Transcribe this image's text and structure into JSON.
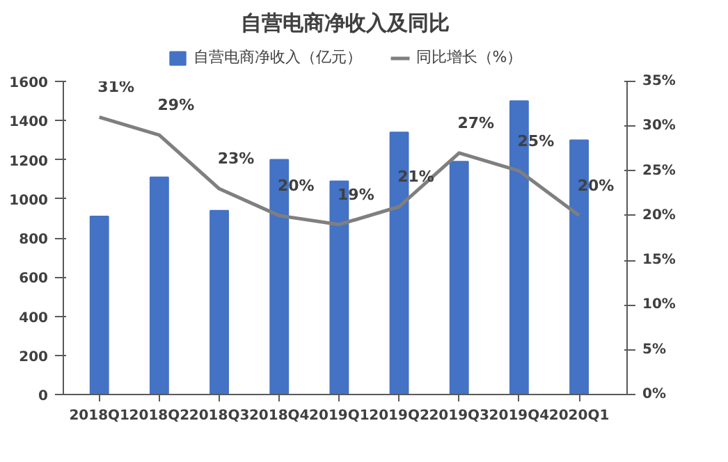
{
  "chart_data": {
    "type": "bar",
    "title": "自营电商净收入及同比",
    "categories": [
      "2018Q1",
      "2018Q2",
      "2018Q3",
      "2018Q4",
      "2019Q1",
      "2019Q2",
      "2019Q3",
      "2019Q4",
      "2020Q1"
    ],
    "series": [
      {
        "name": "自营电商净收入（亿元）",
        "color": "#4472c4",
        "values": [
          910,
          1110,
          940,
          1200,
          1090,
          1340,
          1190,
          1500,
          1300
        ]
      },
      {
        "name": "同比增长（%）",
        "type": "line",
        "axis": "y2",
        "color": "#7f7f7f",
        "values": [
          31,
          29,
          23,
          20,
          19,
          21,
          27,
          25,
          20
        ],
        "value_labels": [
          "31%",
          "29%",
          "23%",
          "20%",
          "19%",
          "21%",
          "27%",
          "25%",
          "20%"
        ]
      }
    ],
    "ylim": [
      0,
      1600
    ],
    "yticks": [
      0,
      200,
      400,
      600,
      800,
      1000,
      1200,
      1400,
      1600
    ],
    "y2lim": [
      0,
      35
    ],
    "y2ticks": [
      {
        "value": 0,
        "label": "0%"
      },
      {
        "value": 5,
        "label": "5%"
      },
      {
        "value": 10,
        "label": "10%"
      },
      {
        "value": 15,
        "label": "15%"
      },
      {
        "value": 20,
        "label": "20%"
      },
      {
        "value": 25,
        "label": "25%"
      },
      {
        "value": 30,
        "label": "30%"
      },
      {
        "value": 35,
        "label": "35%"
      }
    ],
    "legend": "top",
    "grid": false,
    "marker": "none",
    "line_style": "solid"
  }
}
